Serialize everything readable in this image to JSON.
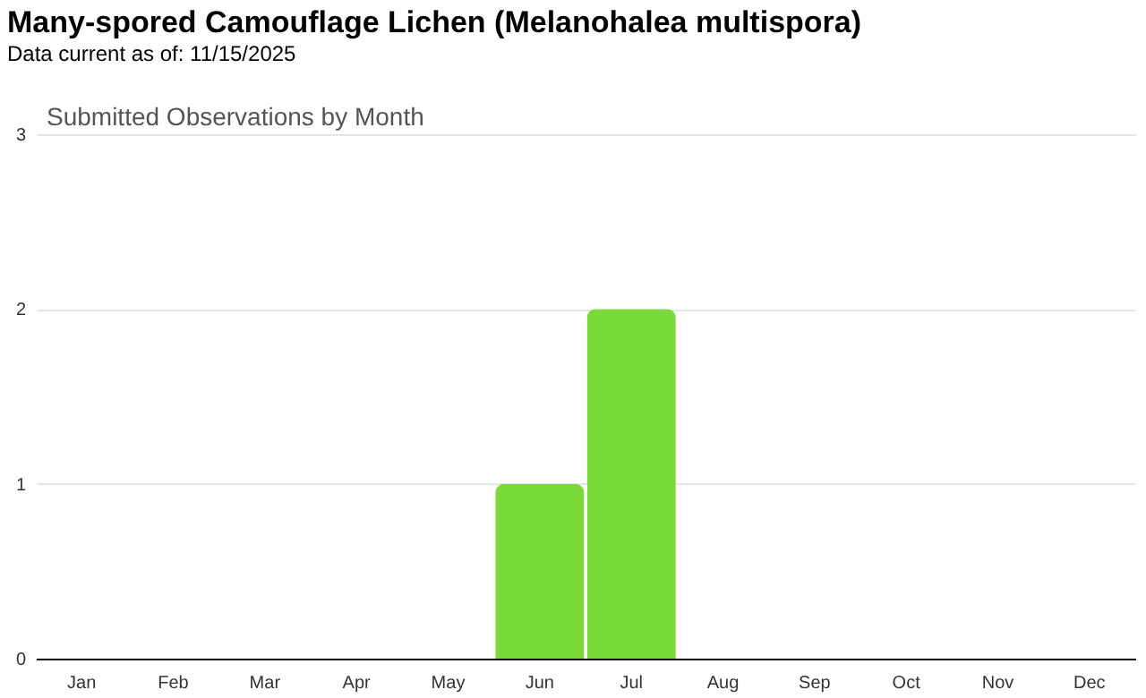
{
  "chart_data": {
    "type": "bar",
    "title": "Many-spored Camouflage Lichen   (Melanohalea multispora)",
    "subtitle": "Data current as of: 11/15/2025",
    "annotations": [
      "Submitted Observations by Month"
    ],
    "categories": [
      "Jan",
      "Feb",
      "Mar",
      "Apr",
      "May",
      "Jun",
      "Jul",
      "Aug",
      "Sep",
      "Oct",
      "Nov",
      "Dec"
    ],
    "values": [
      0,
      0,
      0,
      0,
      0,
      1,
      2,
      0,
      0,
      0,
      0,
      0
    ],
    "color": "#7ada3a",
    "ylim": [
      0,
      3
    ],
    "yticks": [
      0,
      1,
      2,
      3
    ],
    "grid": "y"
  }
}
